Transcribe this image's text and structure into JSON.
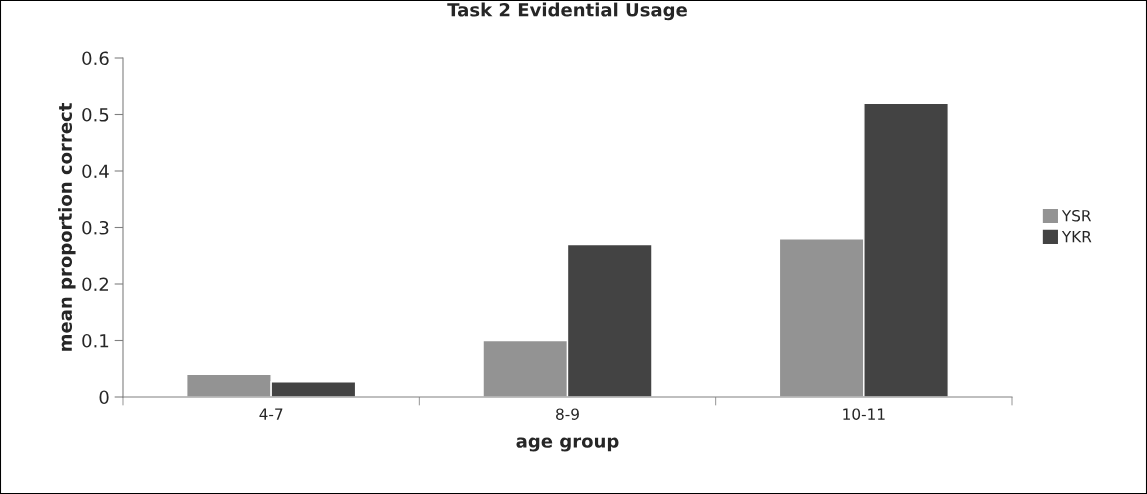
{
  "chart_data": {
    "type": "bar",
    "title": "Task 2 Evidential Usage",
    "xlabel": "age group",
    "ylabel": "mean proportion correct",
    "categories": [
      "4-7",
      "8-9",
      "10-11"
    ],
    "series": [
      {
        "name": "YSR",
        "color": "#939393",
        "values": [
          0.04,
          0.1,
          0.28
        ]
      },
      {
        "name": "YKR",
        "color": "#434343",
        "values": [
          0.027,
          0.27,
          0.52
        ]
      }
    ],
    "ylim": [
      0,
      0.6
    ],
    "yticks": [
      0,
      0.1,
      0.2,
      0.3,
      0.4,
      0.5,
      0.6
    ],
    "grid": false,
    "legend": "right"
  }
}
